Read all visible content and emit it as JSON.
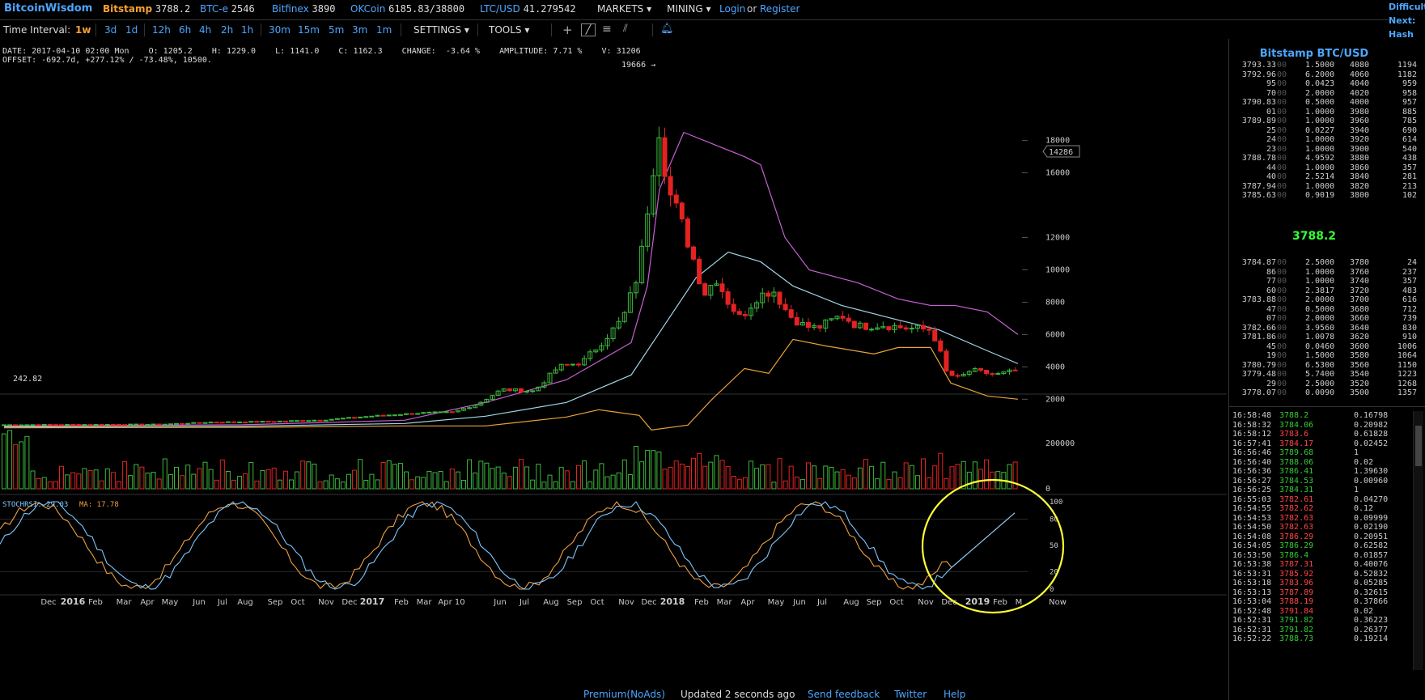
{
  "topbar": {
    "brand": "BitcoinWisdom",
    "tickers": [
      {
        "name": "Bitstamp",
        "value": "3788.2"
      },
      {
        "name": "BTC-e",
        "value": "2546"
      },
      {
        "name": "Bitfinex",
        "value": "3890"
      },
      {
        "name": "OKCoin",
        "value": "6185.83/38800"
      },
      {
        "name": "LTC/USD",
        "value": "41.279542"
      }
    ],
    "markets": "MARKETS",
    "mining": "MINING",
    "login": "Login",
    "or": "or",
    "register": "Register",
    "corner": [
      "Difficult",
      "Next:",
      "Hash Ra"
    ]
  },
  "toolbar": {
    "time_label": "Time Interval:",
    "intervals": [
      "1w",
      "3d",
      "1d",
      "12h",
      "6h",
      "4h",
      "2h",
      "1h",
      "30m",
      "15m",
      "5m",
      "3m",
      "1m"
    ],
    "active": "1w",
    "settings": "SETTINGS",
    "tools": "TOOLS"
  },
  "info": {
    "line1": "DATE: 2017-04-10 02:00 Mon    O: 1205.2    H: 1229.0    L: 1141.0    C: 1162.3    CHANGE:  -3.64 %    AMPLITUDE: 7.71 %    V: 31206",
    "line2": "OFFSET: -692.7d, +277.12% / -73.48%, 10500."
  },
  "main_chart": {
    "peak_label": "19666 →",
    "cursor_price": "14286",
    "left_price": "242.82",
    "price_ticks": [
      "18000",
      "16000",
      "12000",
      "10000",
      "8000",
      "6000",
      "4000",
      "2000"
    ],
    "volume_ticks": [
      "200000",
      "0"
    ],
    "stoch_label": "STOCHRSI: 29.03",
    "ma_label": "MA: 17.78",
    "stoch_ticks": [
      "100",
      "80",
      "50",
      "20",
      "0"
    ],
    "x_labels": [
      "Dec",
      "2016",
      "Feb",
      "Mar",
      "Apr",
      "May",
      "Jun",
      "Jul",
      "Aug",
      "Sep",
      "Oct",
      "Nov",
      "Dec",
      "2017",
      "Feb",
      "Mar",
      "Apr 10",
      "Jun",
      "Jul",
      "Aug",
      "Sep",
      "Oct",
      "Nov",
      "Dec",
      "2018",
      "Feb",
      "Mar",
      "Apr",
      "May",
      "Jun",
      "Jul",
      "Aug",
      "Sep",
      "Oct",
      "Nov",
      "Dec",
      "2019",
      "Feb",
      "M",
      "Now"
    ],
    "colors": {
      "up": "#3cb83c",
      "down": "#e52222",
      "upper_band": "#c95fd6",
      "middle_band": "#9fd6e8",
      "lower_band": "#e8a23a",
      "stoch": "#7fc7ff",
      "ma": "#f0a040",
      "annotation": "#ffff33"
    }
  },
  "orderbook": {
    "title": "Bitstamp BTC/USD",
    "asks": [
      [
        "3793.33",
        "00",
        "1.5000",
        "4080",
        "1194"
      ],
      [
        "3792.96",
        "00",
        "6.2000",
        "4060",
        "1182"
      ],
      [
        "95",
        "00",
        "0.0423",
        "4040",
        "959"
      ],
      [
        "70",
        "00",
        "2.0000",
        "4020",
        "958"
      ],
      [
        "3790.83",
        "00",
        "0.5000",
        "4000",
        "957"
      ],
      [
        "01",
        "00",
        "1.0000",
        "3980",
        "885"
      ],
      [
        "3789.89",
        "00",
        "1.0000",
        "3960",
        "785"
      ],
      [
        "25",
        "00",
        "0.0227",
        "3940",
        "690"
      ],
      [
        "24",
        "00",
        "1.0000",
        "3920",
        "614"
      ],
      [
        "23",
        "00",
        "1.0000",
        "3900",
        "540"
      ],
      [
        "3788.78",
        "00",
        "4.9592",
        "3880",
        "438"
      ],
      [
        "44",
        "00",
        "1.0000",
        "3860",
        "357"
      ],
      [
        "40",
        "00",
        "2.5214",
        "3840",
        "281"
      ],
      [
        "3787.94",
        "00",
        "1.0000",
        "3820",
        "213"
      ],
      [
        "3785.63",
        "00",
        "0.9019",
        "3800",
        "102"
      ]
    ],
    "mid": "3788.2",
    "bids": [
      [
        "3784.87",
        "00",
        "2.5000",
        "3780",
        "24"
      ],
      [
        "86",
        "00",
        "1.0000",
        "3760",
        "237"
      ],
      [
        "77",
        "00",
        "1.0000",
        "3740",
        "357"
      ],
      [
        "60",
        "00",
        "2.3817",
        "3720",
        "483"
      ],
      [
        "3783.88",
        "00",
        "2.0000",
        "3700",
        "616"
      ],
      [
        "47",
        "00",
        "0.5000",
        "3680",
        "712"
      ],
      [
        "07",
        "00",
        "2.0000",
        "3660",
        "739"
      ],
      [
        "3782.66",
        "00",
        "3.9560",
        "3640",
        "830"
      ],
      [
        "3781.86",
        "00",
        "1.0078",
        "3620",
        "910"
      ],
      [
        "45",
        "00",
        "0.0460",
        "3600",
        "1006"
      ],
      [
        "19",
        "00",
        "1.5000",
        "3580",
        "1064"
      ],
      [
        "3780.79",
        "00",
        "6.5300",
        "3560",
        "1150"
      ],
      [
        "3779.48",
        "00",
        "5.7400",
        "3540",
        "1223"
      ],
      [
        "29",
        "00",
        "2.5000",
        "3520",
        "1268"
      ],
      [
        "3778.07",
        "00",
        "0.0090",
        "3500",
        "1357"
      ]
    ]
  },
  "trades": [
    [
      "16:58:48",
      "3788.2",
      "0.16798",
      "up"
    ],
    [
      "16:58:32",
      "3784.06",
      "0.20982",
      "up"
    ],
    [
      "16:58:12",
      "3783.6",
      "0.61828",
      "down"
    ],
    [
      "16:57:41",
      "3784.17",
      "0.02452",
      "down"
    ],
    [
      "16:56:46",
      "3789.68",
      "1",
      "up"
    ],
    [
      "16:56:40",
      "3788.06",
      "0.02",
      "up"
    ],
    [
      "16:56:36",
      "3786.41",
      "1.39630",
      "up"
    ],
    [
      "16:56:27",
      "3784.53",
      "0.00960",
      "up"
    ],
    [
      "16:56:25",
      "3784.31",
      "1",
      "up"
    ],
    [
      "16:55:03",
      "3782.61",
      "0.04270",
      "down"
    ],
    [
      "16:54:55",
      "3782.62",
      "0.12",
      "down"
    ],
    [
      "16:54:53",
      "3782.63",
      "0.09999",
      "down"
    ],
    [
      "16:54:50",
      "3782.63",
      "0.02190",
      "down"
    ],
    [
      "16:54:08",
      "3786.29",
      "0.20951",
      "down"
    ],
    [
      "16:54:05",
      "3786.29",
      "0.62582",
      "up"
    ],
    [
      "16:53:50",
      "3786.4",
      "0.01857",
      "up"
    ],
    [
      "16:53:38",
      "3787.31",
      "0.40076",
      "down"
    ],
    [
      "16:53:31",
      "3785.92",
      "0.52832",
      "down"
    ],
    [
      "16:53:18",
      "3783.96",
      "0.05285",
      "down"
    ],
    [
      "16:53:13",
      "3787.89",
      "0.32615",
      "down"
    ],
    [
      "16:53:04",
      "3788.19",
      "0.37866",
      "down"
    ],
    [
      "16:52:48",
      "3791.84",
      "0.02",
      "down"
    ],
    [
      "16:52:31",
      "3791.82",
      "0.36223",
      "up"
    ],
    [
      "16:52:31",
      "3791.82",
      "0.26377",
      "up"
    ],
    [
      "16:52:22",
      "3788.73",
      "0.19214",
      "up"
    ]
  ],
  "footer": {
    "premium": "Premium(NoAds)",
    "updated": "Updated 2 seconds ago",
    "feedback": "Send feedback",
    "twitter": "Twitter",
    "help": "Help"
  }
}
